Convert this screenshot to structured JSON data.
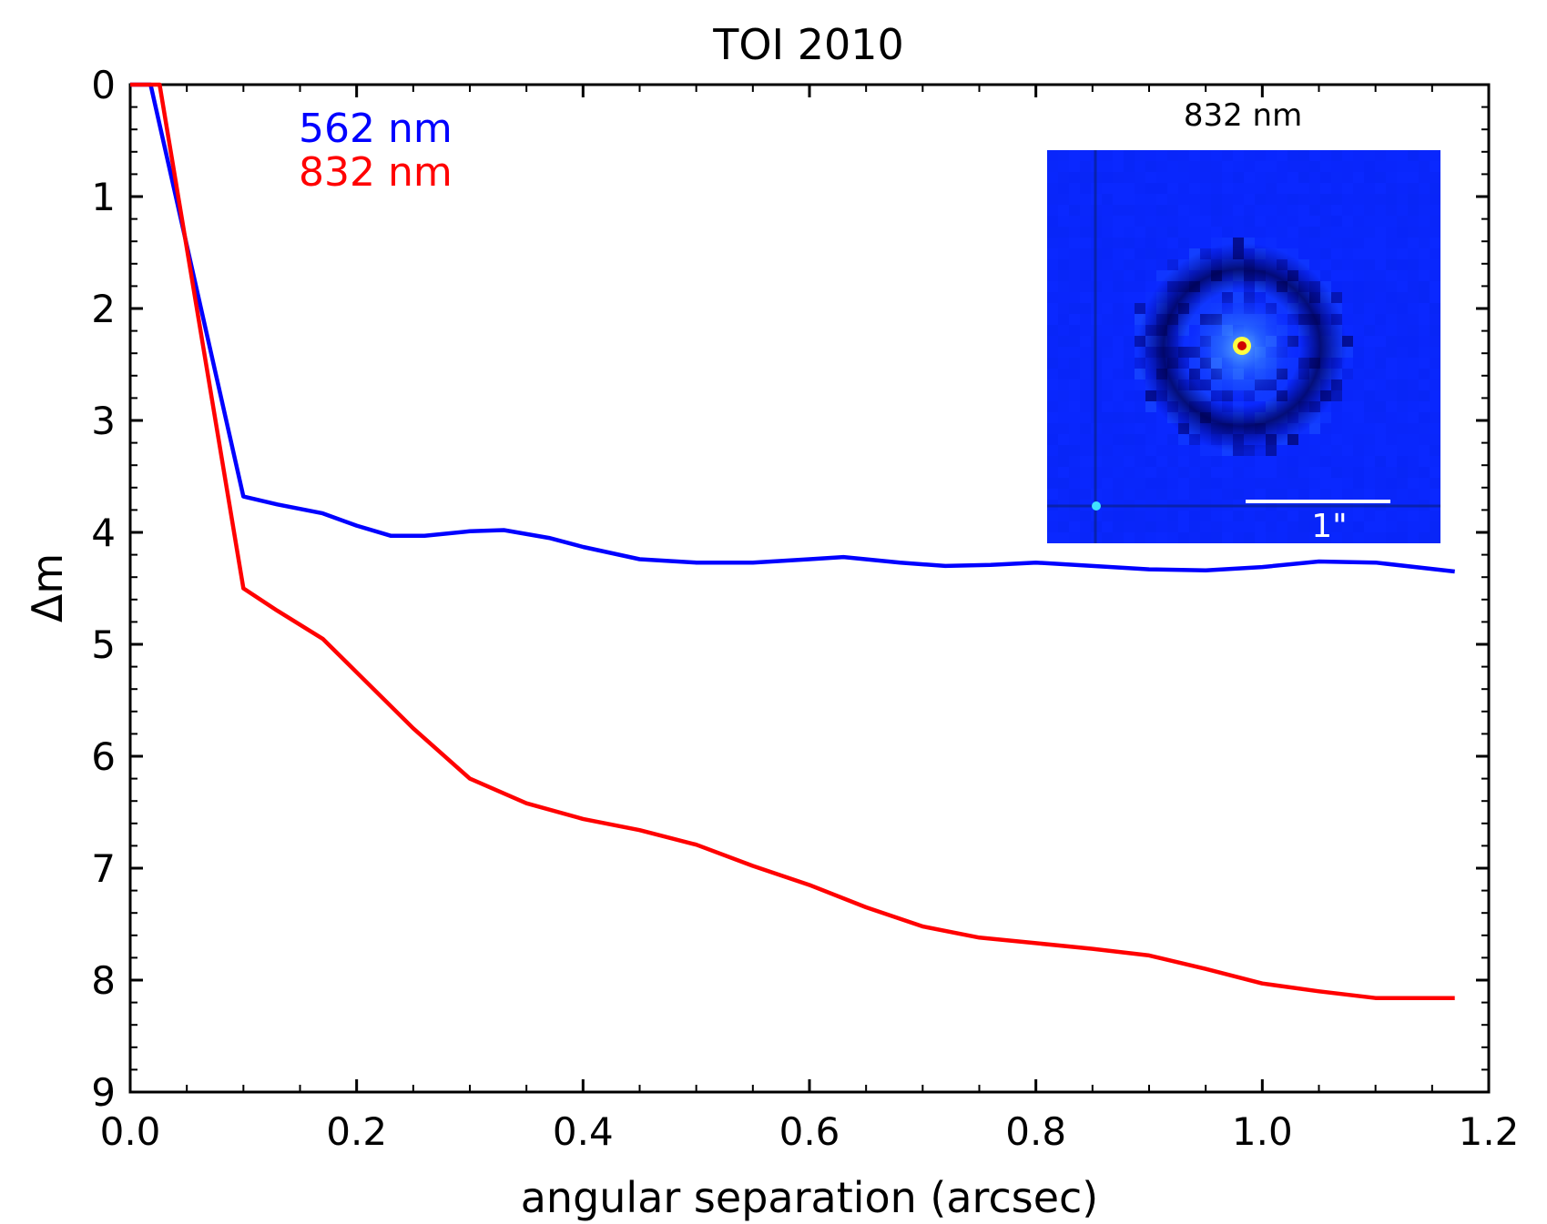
{
  "chart_data": {
    "type": "line",
    "title": "TOI 2010",
    "xlabel": "angular separation (arcsec)",
    "ylabel": "Δm",
    "xlim": [
      0.0,
      1.2
    ],
    "ylim": [
      0,
      9
    ],
    "y_inverted": true,
    "x_ticks": [
      "0.0",
      "0.2",
      "0.4",
      "0.6",
      "0.8",
      "1.0",
      "1.2"
    ],
    "y_ticks": [
      "0",
      "1",
      "2",
      "3",
      "4",
      "5",
      "6",
      "7",
      "8",
      "9"
    ],
    "legend": "top-left",
    "grid": false,
    "series": [
      {
        "name": "562 nm",
        "color": "#0000ff",
        "x": [
          0.0,
          0.018,
          0.1,
          0.13,
          0.17,
          0.2,
          0.23,
          0.26,
          0.3,
          0.33,
          0.37,
          0.4,
          0.45,
          0.5,
          0.55,
          0.6,
          0.63,
          0.68,
          0.72,
          0.76,
          0.8,
          0.85,
          0.9,
          0.95,
          1.0,
          1.05,
          1.1,
          1.17
        ],
        "y": [
          0.0,
          0.0,
          3.68,
          3.75,
          3.83,
          3.94,
          4.03,
          4.03,
          3.99,
          3.98,
          4.05,
          4.13,
          4.24,
          4.27,
          4.27,
          4.24,
          4.22,
          4.27,
          4.3,
          4.29,
          4.27,
          4.3,
          4.33,
          4.34,
          4.31,
          4.26,
          4.27,
          4.35
        ]
      },
      {
        "name": "832 nm",
        "color": "#ff0000",
        "x": [
          0.0,
          0.026,
          0.1,
          0.13,
          0.17,
          0.2,
          0.25,
          0.3,
          0.35,
          0.4,
          0.45,
          0.5,
          0.55,
          0.6,
          0.65,
          0.7,
          0.75,
          0.8,
          0.85,
          0.9,
          0.95,
          1.0,
          1.05,
          1.1,
          1.17
        ],
        "y": [
          0.0,
          0.0,
          4.5,
          4.7,
          4.95,
          5.25,
          5.75,
          6.2,
          6.42,
          6.56,
          6.66,
          6.79,
          6.98,
          7.15,
          7.35,
          7.52,
          7.62,
          7.67,
          7.72,
          7.78,
          7.9,
          8.03,
          8.1,
          8.16,
          8.16
        ]
      }
    ],
    "inset": {
      "title": "832 nm",
      "scale_bar_label": "1\"",
      "background_color": "#0a28ff"
    }
  }
}
